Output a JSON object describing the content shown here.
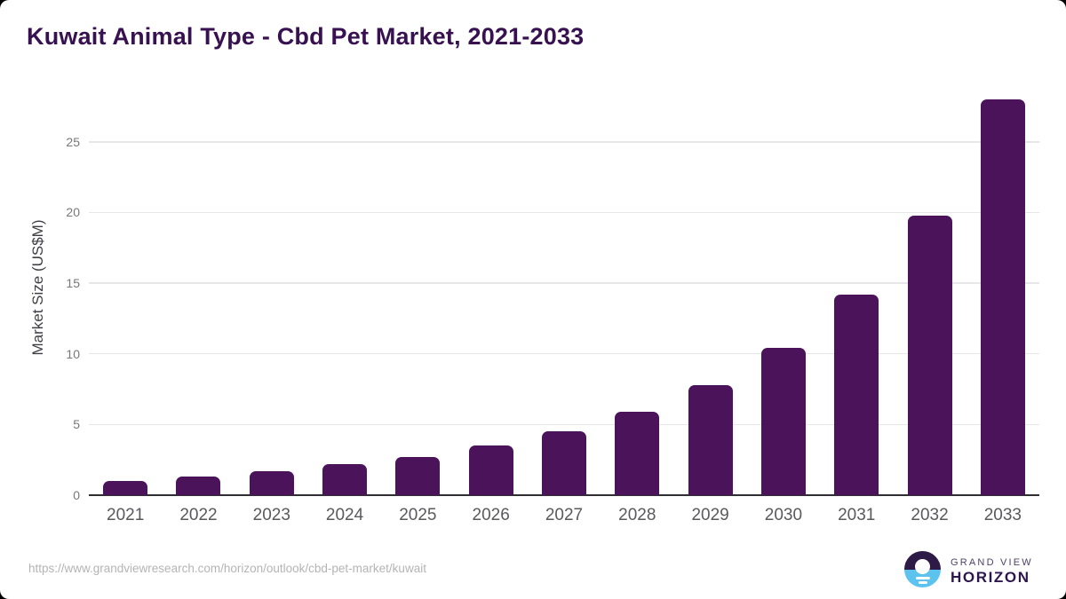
{
  "page": {
    "title": "Kuwait Animal Type - Cbd Pet Market, 2021-2033",
    "source_url": "https://www.grandviewresearch.com/horizon/outlook/cbd-pet-market/kuwait"
  },
  "branding": {
    "name_top": "GRAND VIEW",
    "name_bottom": "HORIZON",
    "icon": "sunrise-horizon-icon",
    "colors": {
      "logo_purple": "#2E1A47",
      "logo_blue": "#5BC3EE"
    }
  },
  "chart_data": {
    "type": "bar",
    "title": "Kuwait Animal Type - Cbd Pet Market, 2021-2033",
    "categories": [
      "2021",
      "2022",
      "2023",
      "2024",
      "2025",
      "2026",
      "2027",
      "2028",
      "2029",
      "2030",
      "2031",
      "2032",
      "2033"
    ],
    "values": [
      1.0,
      1.3,
      1.7,
      2.2,
      2.7,
      3.5,
      4.5,
      5.9,
      7.8,
      10.4,
      14.2,
      19.8,
      28.0
    ],
    "xlabel": "",
    "ylabel": "Market Size (US$M)",
    "yticks": [
      0,
      5,
      10,
      15,
      20,
      25
    ],
    "ylim": [
      0,
      28.4
    ],
    "grid": "horizontal",
    "legend": "none",
    "bar_color": "#4A135A",
    "axis_color": "#2F2F33",
    "gridline_color": "#E7E7E9",
    "title_color": "#371150",
    "tick_label_color": "#59595E"
  }
}
